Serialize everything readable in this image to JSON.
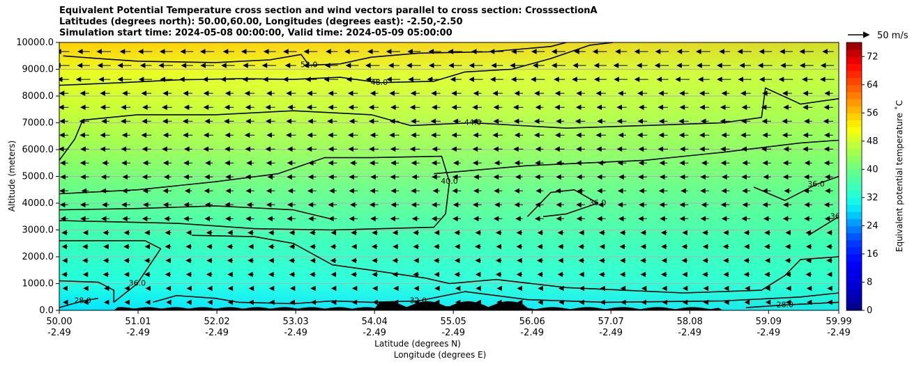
{
  "chart_data": {
    "type": "cross-section-contour",
    "title_lines": [
      "Equivalent Potential Temperature cross section and wind vectors parallel to cross section: CrosssectionA",
      "Latitudes (degrees north): 50.00,60.00, Longitudes (degrees east): -2.50,-2.50",
      "Simulation start time: 2024-05-08 00:00:00, Valid time: 2024-05-09 05:00:00"
    ],
    "ylabel": "Altitude (meters)",
    "xlabel_1": "Latitude (degrees N)",
    "xlabel_2": "Longitude (degrees E)",
    "ylim": [
      0,
      10000
    ],
    "yticks": [
      "0.0",
      "1000.0",
      "2000.0",
      "3000.0",
      "4000.0",
      "5000.0",
      "6000.0",
      "7000.0",
      "8000.0",
      "9000.0",
      "10000.0"
    ],
    "xlim": [
      50.0,
      59.99
    ],
    "xticks": [
      {
        "lat": "50.00",
        "lon": "-2.49",
        "value": 50.0
      },
      {
        "lat": "51.01",
        "lon": "-2.49",
        "value": 51.01
      },
      {
        "lat": "52.02",
        "lon": "-2.49",
        "value": 52.02
      },
      {
        "lat": "53.03",
        "lon": "-2.49",
        "value": 53.03
      },
      {
        "lat": "54.04",
        "lon": "-2.49",
        "value": 54.04
      },
      {
        "lat": "55.05",
        "lon": "-2.49",
        "value": 55.05
      },
      {
        "lat": "56.06",
        "lon": "-2.49",
        "value": 56.06
      },
      {
        "lat": "57.07",
        "lon": "-2.49",
        "value": 57.07
      },
      {
        "lat": "58.08",
        "lon": "-2.49",
        "value": 58.08
      },
      {
        "lat": "59.09",
        "lon": "-2.49",
        "value": 59.09
      },
      {
        "lat": "59.99",
        "lon": "-2.49",
        "value": 59.99
      }
    ],
    "colorbar": {
      "label": "Equivalent potential temperature ˚C",
      "min": 0,
      "max": 76,
      "ticks": [
        "0",
        "8",
        "16",
        "24",
        "32",
        "40",
        "48",
        "56",
        "64",
        "72"
      ]
    },
    "quiver_key": "50 m/s",
    "contours": [
      {
        "level": 52,
        "label": "52.0",
        "points": [
          [
            50.05,
            9500
          ],
          [
            50.5,
            9400
          ],
          [
            51.0,
            9300
          ],
          [
            52.0,
            9250
          ],
          [
            52.7,
            9350
          ],
          [
            53.1,
            9550
          ],
          [
            53.2,
            9150
          ],
          [
            53.6,
            9200
          ],
          [
            54.0,
            9450
          ],
          [
            54.6,
            9600
          ],
          [
            55.5,
            9650
          ],
          [
            56.3,
            9850
          ],
          [
            56.5,
            10000
          ]
        ]
      },
      {
        "level": 48,
        "label": "48.0",
        "points": [
          [
            50.0,
            8400
          ],
          [
            50.8,
            8500
          ],
          [
            51.5,
            8600
          ],
          [
            52.3,
            8650
          ],
          [
            53.0,
            8620
          ],
          [
            53.6,
            8700
          ],
          [
            54.1,
            8500
          ],
          [
            54.8,
            8550
          ],
          [
            55.2,
            8900
          ],
          [
            55.8,
            9000
          ],
          [
            56.3,
            9400
          ],
          [
            56.8,
            9900
          ],
          [
            57.1,
            10000
          ]
        ]
      },
      {
        "level": 44,
        "label": "44.0",
        "points": [
          [
            50.0,
            5600
          ],
          [
            50.2,
            6400
          ],
          [
            50.3,
            7100
          ],
          [
            51.0,
            7300
          ],
          [
            52.0,
            7300
          ],
          [
            53.0,
            7450
          ],
          [
            54.0,
            7300
          ],
          [
            54.5,
            6900
          ],
          [
            55.3,
            7000
          ],
          [
            56.5,
            6800
          ],
          [
            57.5,
            6900
          ],
          [
            58.5,
            7000
          ],
          [
            59.0,
            7200
          ],
          [
            59.05,
            8300
          ],
          [
            59.5,
            7700
          ],
          [
            59.99,
            7900
          ]
        ]
      },
      {
        "level": 40,
        "label": "40.0",
        "points": [
          [
            50.0,
            4350
          ],
          [
            51.0,
            4500
          ],
          [
            52.0,
            4800
          ],
          [
            52.8,
            5100
          ],
          [
            53.4,
            5700
          ],
          [
            54.0,
            5700
          ],
          [
            54.9,
            5750
          ],
          [
            55.0,
            4800
          ],
          [
            54.95,
            3600
          ],
          [
            54.8,
            3100
          ],
          [
            53.5,
            3000
          ],
          [
            52.5,
            3050
          ],
          [
            51.5,
            3250
          ],
          [
            50.0,
            3350
          ]
        ]
      },
      {
        "level": 40,
        "label": "",
        "points": [
          [
            50.0,
            3750
          ],
          [
            51.0,
            3800
          ],
          [
            52.0,
            3900
          ],
          [
            53.0,
            3750
          ],
          [
            53.5,
            3400
          ]
        ]
      },
      {
        "level": 40,
        "label": "",
        "points": [
          [
            54.8,
            5100
          ],
          [
            56.0,
            5400
          ],
          [
            57.5,
            5600
          ],
          [
            58.5,
            5900
          ],
          [
            59.5,
            6250
          ],
          [
            59.99,
            6350
          ]
        ]
      },
      {
        "level": 36,
        "label": "36.0",
        "points": [
          [
            50.0,
            1100
          ],
          [
            50.5,
            1050
          ],
          [
            50.7,
            750
          ],
          [
            50.7,
            300
          ],
          [
            51.0,
            1000
          ],
          [
            51.3,
            2300
          ],
          [
            51.1,
            2600
          ],
          [
            50.0,
            2600
          ]
        ]
      },
      {
        "level": 36,
        "label": "",
        "points": [
          [
            51.7,
            2800
          ],
          [
            52.5,
            2750
          ],
          [
            53.0,
            2500
          ],
          [
            53.5,
            1700
          ],
          [
            54.0,
            1500
          ],
          [
            54.7,
            1200
          ],
          [
            55.0,
            1000
          ],
          [
            55.6,
            1150
          ],
          [
            56.5,
            850
          ],
          [
            58.0,
            650
          ],
          [
            59.0,
            750
          ],
          [
            59.3,
            1300
          ],
          [
            59.5,
            1900
          ],
          [
            59.99,
            2000
          ]
        ]
      },
      {
        "level": 36,
        "label": "36.0",
        "points": [
          [
            56.0,
            3500
          ],
          [
            56.3,
            4400
          ],
          [
            56.6,
            4500
          ],
          [
            56.9,
            4000
          ],
          [
            56.5,
            3600
          ],
          [
            56.2,
            3500
          ]
        ]
      },
      {
        "level": 36,
        "label": "36.0",
        "points": [
          [
            58.9,
            4600
          ],
          [
            59.3,
            4100
          ],
          [
            59.7,
            4700
          ],
          [
            59.99,
            5000
          ]
        ]
      },
      {
        "level": 36,
        "label": "36.0",
        "points": [
          [
            59.6,
            2800
          ],
          [
            59.99,
            3500
          ]
        ]
      },
      {
        "level": 32,
        "label": "32.0",
        "points": [
          [
            51.2,
            300
          ],
          [
            51.5,
            550
          ],
          [
            52.0,
            450
          ],
          [
            52.3,
            300
          ],
          [
            53.0,
            250
          ],
          [
            53.5,
            350
          ],
          [
            54.0,
            300
          ],
          [
            54.6,
            350
          ],
          [
            55.2,
            700
          ],
          [
            56.0,
            400
          ],
          [
            57.0,
            300
          ],
          [
            58.5,
            350
          ],
          [
            59.5,
            500
          ],
          [
            59.99,
            650
          ]
        ]
      },
      {
        "level": 28,
        "label": "28.0",
        "points": [
          [
            50.0,
            100
          ],
          [
            50.3,
            350
          ],
          [
            50.5,
            450
          ]
        ]
      },
      {
        "level": 28,
        "label": "28.0",
        "points": [
          [
            58.8,
            100
          ],
          [
            59.3,
            200
          ],
          [
            59.99,
            300
          ]
        ]
      }
    ]
  }
}
